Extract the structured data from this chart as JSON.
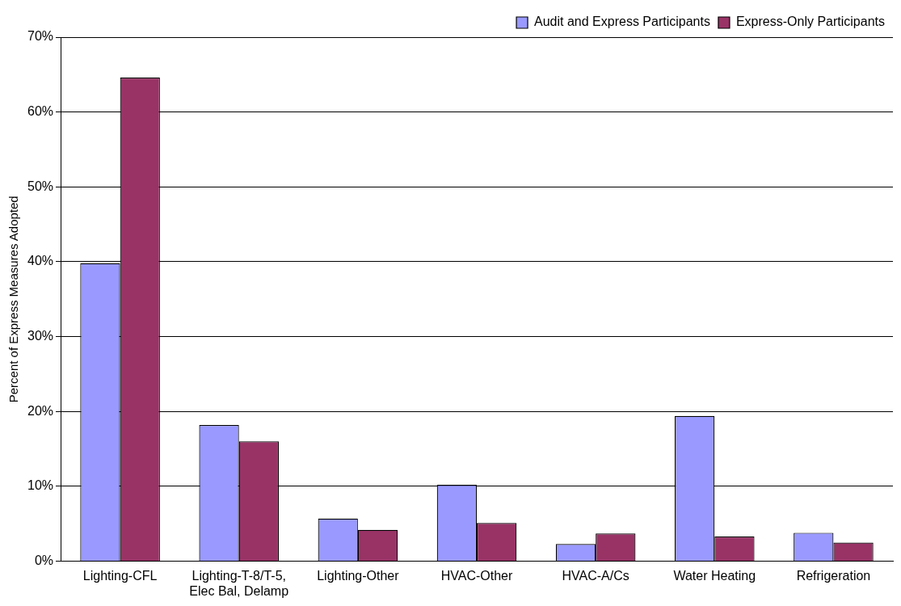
{
  "chart_data": {
    "type": "bar",
    "ylabel": "Percent of Express Measures Adopted",
    "categories": [
      "Lighting-CFL",
      "Lighting-T-8/T-5, Elec Bal, Delamp",
      "Lighting-Other",
      "HVAC-Other",
      "HVAC-A/Cs",
      "Water Heating",
      "Refrigeration"
    ],
    "series": [
      {
        "name": "Audit and Express Participants",
        "color": "#9999ff",
        "values": [
          39.8,
          18.2,
          5.7,
          10.2,
          2.3,
          19.4,
          3.8
        ]
      },
      {
        "name": "Express-Only Participants",
        "color": "#993366",
        "values": [
          64.6,
          16.0,
          4.2,
          5.1,
          3.7,
          3.3,
          2.5
        ]
      }
    ],
    "ylim": [
      0,
      70
    ],
    "yticks": [
      {
        "value": 0,
        "label": "0%"
      },
      {
        "value": 10,
        "label": "10%"
      },
      {
        "value": 20,
        "label": "20%"
      },
      {
        "value": 30,
        "label": "30%"
      },
      {
        "value": 40,
        "label": "40%"
      },
      {
        "value": 50,
        "label": "50%"
      },
      {
        "value": 60,
        "label": "60%"
      },
      {
        "value": 70,
        "label": "70%"
      }
    ],
    "grid": "y",
    "legend": "top right"
  }
}
